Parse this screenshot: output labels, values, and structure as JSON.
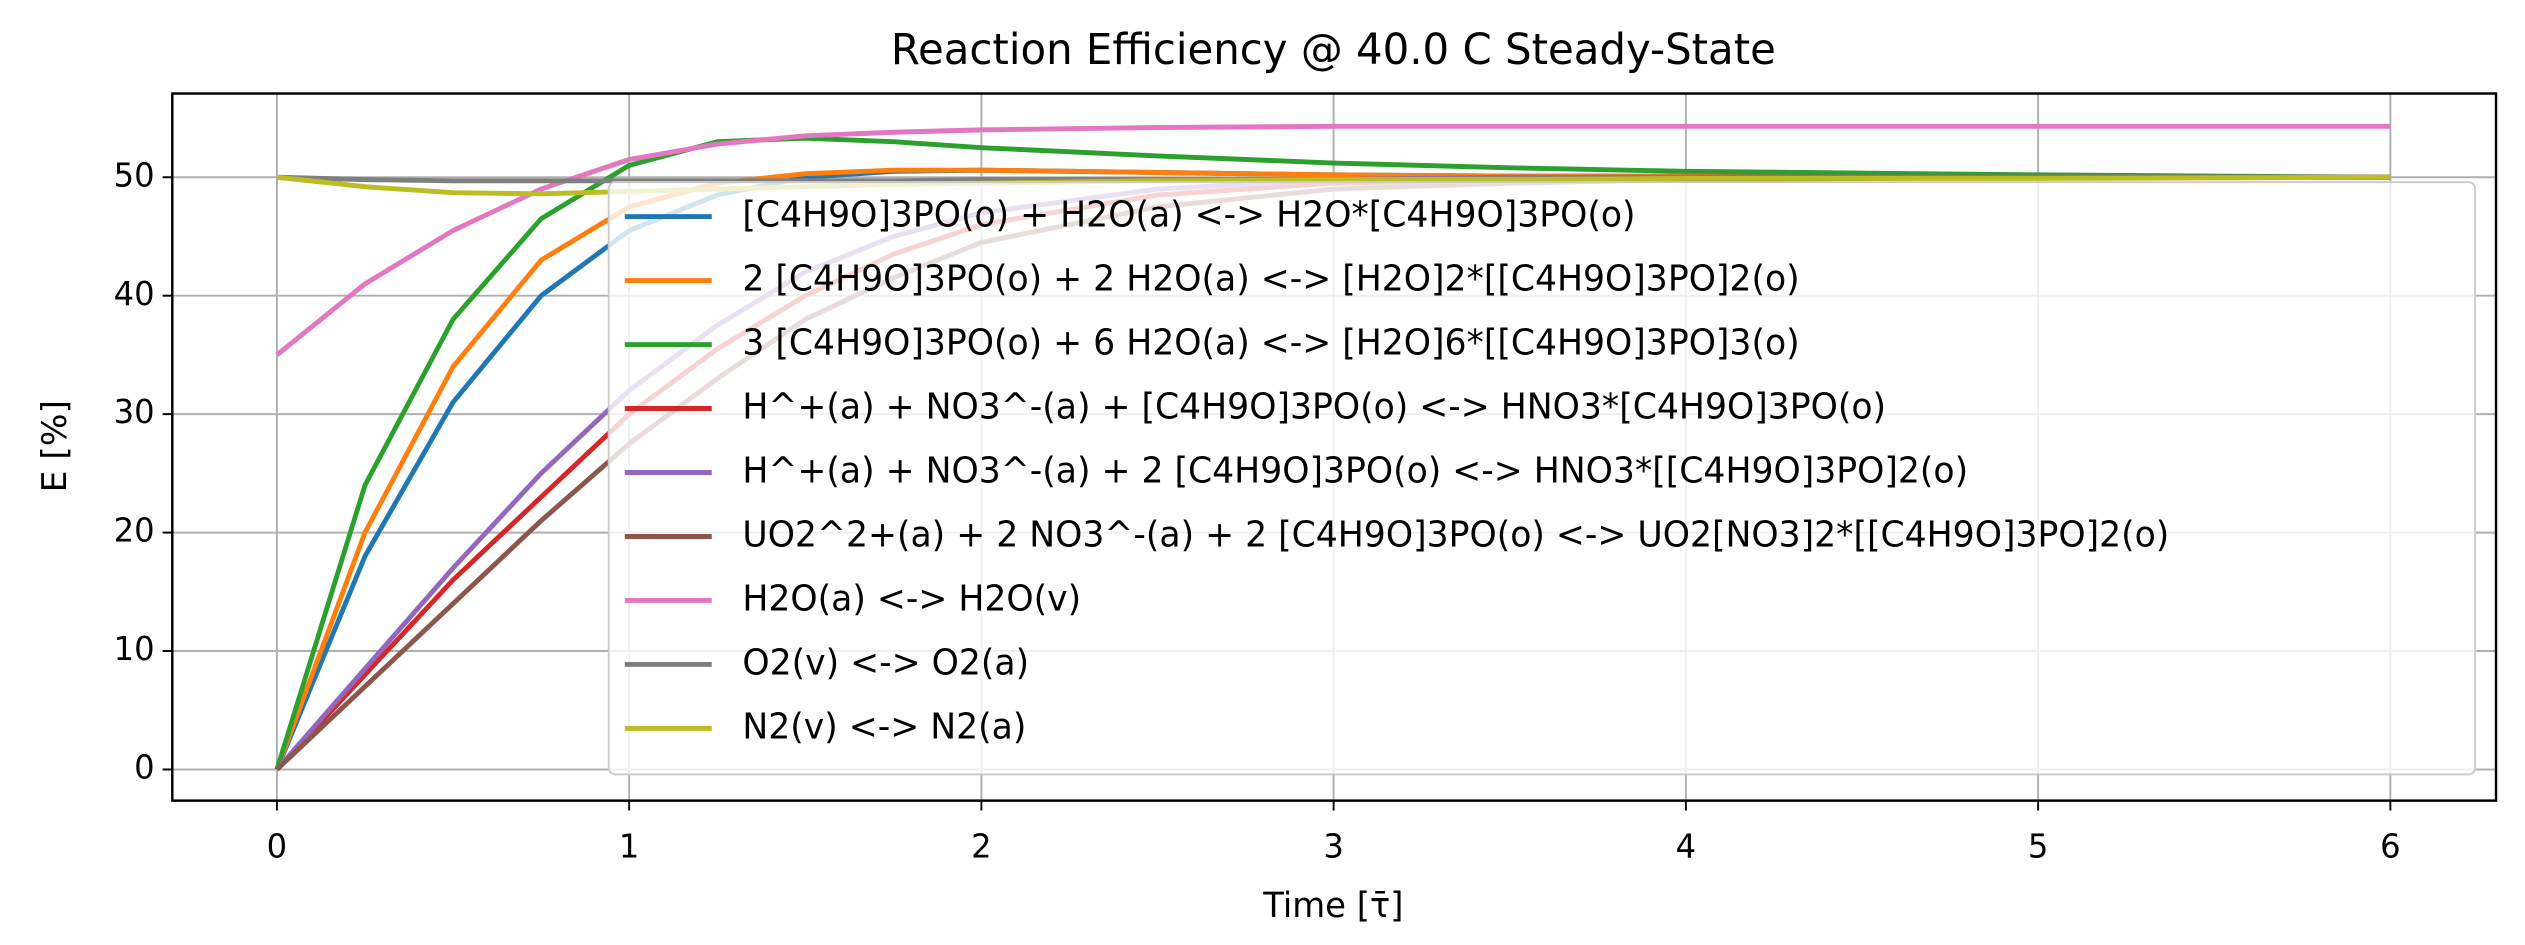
{
  "chart_data": {
    "type": "line",
    "title": "Reaction Efficiency @ 40.0 C Steady-State",
    "x_label": "Time [τ̄]",
    "y_label": "E [%]",
    "x": [
      0,
      0.25,
      0.5,
      0.75,
      1,
      1.25,
      1.5,
      1.75,
      2,
      2.5,
      3,
      3.5,
      4,
      5,
      6
    ],
    "series": [
      {
        "name": "[C4H9O]3PO(o) + H2O(a) <-> H2O*[C4H9O]3PO(o)",
        "color": "#1f77b4",
        "values": [
          0,
          18,
          31,
          40,
          45.5,
          48.5,
          50,
          50.5,
          50.6,
          50.4,
          50.2,
          50.1,
          50.1,
          50,
          50
        ]
      },
      {
        "name": "2 [C4H9O]3PO(o) + 2 H2O(a) <-> [H2O]2*[[C4H9O]3PO]2(o)",
        "color": "#ff7f0e",
        "values": [
          0,
          20,
          34,
          43,
          47.5,
          49.5,
          50.3,
          50.6,
          50.6,
          50.4,
          50.2,
          50.1,
          50.1,
          50,
          50
        ]
      },
      {
        "name": "3 [C4H9O]3PO(o) + 6 H2O(a) <-> [H2O]6*[[C4H9O]3PO]3(o)",
        "color": "#2ca02c",
        "values": [
          0,
          24,
          38,
          46.5,
          51,
          53,
          53.3,
          53,
          52.5,
          51.8,
          51.2,
          50.8,
          50.5,
          50.2,
          50
        ]
      },
      {
        "name": "H^+(a) + NO3^-(a) + [C4H9O]3PO(o) <-> HNO3*[C4H9O]3PO(o)",
        "color": "#d62728",
        "values": [
          0,
          8,
          16,
          23,
          30,
          35.5,
          40,
          43.5,
          46,
          48.5,
          49.5,
          49.8,
          50,
          50,
          50
        ]
      },
      {
        "name": "H^+(a) + NO3^-(a) + 2 [C4H9O]3PO(o) <-> HNO3*[[C4H9O]3PO]2(o)",
        "color": "#9467bd",
        "values": [
          0,
          8.5,
          17,
          25,
          32,
          37.5,
          42,
          45,
          47,
          49,
          49.8,
          50,
          50,
          50,
          50
        ]
      },
      {
        "name": "UO2^2+(a) + 2 NO3^-(a) + 2 [C4H9O]3PO(o) <-> UO2[NO3]2*[[C4H9O]3PO]2(o)",
        "color": "#8c564b",
        "values": [
          0,
          7,
          14,
          21,
          27.5,
          33,
          38,
          41.5,
          44.5,
          47.5,
          49,
          49.5,
          49.8,
          50,
          50
        ]
      },
      {
        "name": "H2O(a) <-> H2O(v)",
        "color": "#e377c2",
        "values": [
          35,
          41,
          45.5,
          49,
          51.5,
          52.8,
          53.5,
          53.8,
          54,
          54.2,
          54.3,
          54.3,
          54.3,
          54.3,
          54.3
        ]
      },
      {
        "name": "O2(v) <-> O2(a)",
        "color": "#7f7f7f",
        "values": [
          50,
          49.8,
          49.7,
          49.7,
          49.7,
          49.7,
          49.7,
          49.7,
          49.8,
          49.8,
          49.8,
          49.9,
          49.9,
          50,
          50
        ]
      },
      {
        "name": "N2(v) <-> N2(a)",
        "color": "#bcbd22",
        "values": [
          50,
          49.2,
          48.7,
          48.6,
          48.8,
          49,
          49.2,
          49.4,
          49.5,
          49.7,
          49.8,
          49.8,
          49.9,
          49.9,
          50
        ]
      }
    ],
    "xlim": [
      -0.297,
      6.3
    ],
    "ylim": [
      -2.63,
      57.07
    ],
    "xticks": [
      0,
      1,
      2,
      3,
      4,
      5,
      6
    ],
    "yticks": [
      0,
      10,
      20,
      30,
      40,
      50
    ],
    "grid": true,
    "legend": "lower right"
  }
}
